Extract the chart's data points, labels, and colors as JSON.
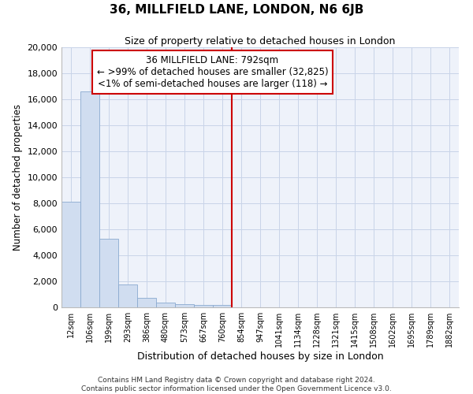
{
  "title": "36, MILLFIELD LANE, LONDON, N6 6JB",
  "subtitle": "Size of property relative to detached houses in London",
  "xlabel": "Distribution of detached houses by size in London",
  "ylabel": "Number of detached properties",
  "bar_color": "#d0ddf0",
  "bar_edge_color": "#8aaad0",
  "grid_color": "#c8d4e8",
  "background_color": "#eef2fa",
  "annotation_line1": "36 MILLFIELD LANE: 792sqm",
  "annotation_line2": "← >99% of detached houses are smaller (32,825)",
  "annotation_line3": "<1% of semi-detached houses are larger (118) →",
  "annotation_box_color": "#ffffff",
  "annotation_box_edge": "#cc0000",
  "vline_color": "#cc0000",
  "categories": [
    "12sqm",
    "106sqm",
    "199sqm",
    "293sqm",
    "386sqm",
    "480sqm",
    "573sqm",
    "667sqm",
    "760sqm",
    "854sqm",
    "947sqm",
    "1041sqm",
    "1134sqm",
    "1228sqm",
    "1321sqm",
    "1415sqm",
    "1508sqm",
    "1602sqm",
    "1695sqm",
    "1789sqm",
    "1882sqm"
  ],
  "values": [
    8100,
    16600,
    5300,
    1750,
    700,
    360,
    255,
    195,
    190,
    0,
    0,
    0,
    0,
    0,
    0,
    0,
    0,
    0,
    0,
    0,
    0
  ],
  "ylim": [
    0,
    20000
  ],
  "yticks": [
    0,
    2000,
    4000,
    6000,
    8000,
    10000,
    12000,
    14000,
    16000,
    18000,
    20000
  ],
  "vline_pos": 8.5,
  "footnote1": "Contains HM Land Registry data © Crown copyright and database right 2024.",
  "footnote2": "Contains public sector information licensed under the Open Government Licence v3.0."
}
